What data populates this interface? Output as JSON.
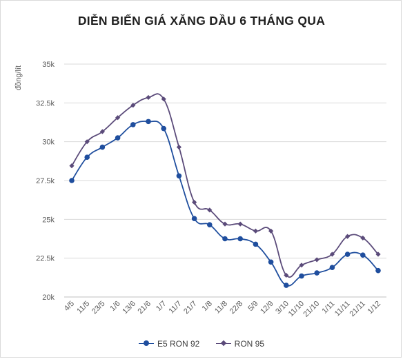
{
  "chart_data": {
    "type": "line",
    "title": "DIỄN BIẾN GIÁ XĂNG DẦU 6 THÁNG QUA",
    "ylabel": "đồng/lít",
    "xlabel": "",
    "ylim": [
      20000,
      35000
    ],
    "yticks": [
      {
        "value": 20000,
        "label": "20k"
      },
      {
        "value": 22500,
        "label": "22.5k"
      },
      {
        "value": 25000,
        "label": "25k"
      },
      {
        "value": 27500,
        "label": "27.5k"
      },
      {
        "value": 30000,
        "label": "30k"
      },
      {
        "value": 32500,
        "label": "32.5k"
      },
      {
        "value": 35000,
        "label": "35k"
      }
    ],
    "grid": "horizontal",
    "legend_position": "bottom",
    "categories": [
      "4/5",
      "11/5",
      "23/5",
      "1/6",
      "13/6",
      "21/6",
      "1/7",
      "11/7",
      "21/7",
      "1/8",
      "11/8",
      "22/8",
      "5/9",
      "12/9",
      "3/10",
      "11/10",
      "21/10",
      "1/11",
      "11/11",
      "21/11",
      "1/12"
    ],
    "series": [
      {
        "name": "E5 RON 92",
        "color": "#1f4e9e",
        "marker": "circle",
        "values": [
          27500,
          29000,
          29650,
          30250,
          31100,
          31300,
          30850,
          27800,
          25050,
          24650,
          23750,
          23750,
          23400,
          22250,
          20750,
          21350,
          21550,
          21900,
          22750,
          22700,
          21700
        ]
      },
      {
        "name": "RON 95",
        "color": "#5b4b7a",
        "marker": "diamond",
        "values": [
          28450,
          30000,
          30650,
          31550,
          32350,
          32850,
          32750,
          29650,
          26100,
          25600,
          24700,
          24700,
          24250,
          24250,
          21400,
          22050,
          22400,
          22750,
          23900,
          23800,
          22750
        ]
      }
    ]
  }
}
